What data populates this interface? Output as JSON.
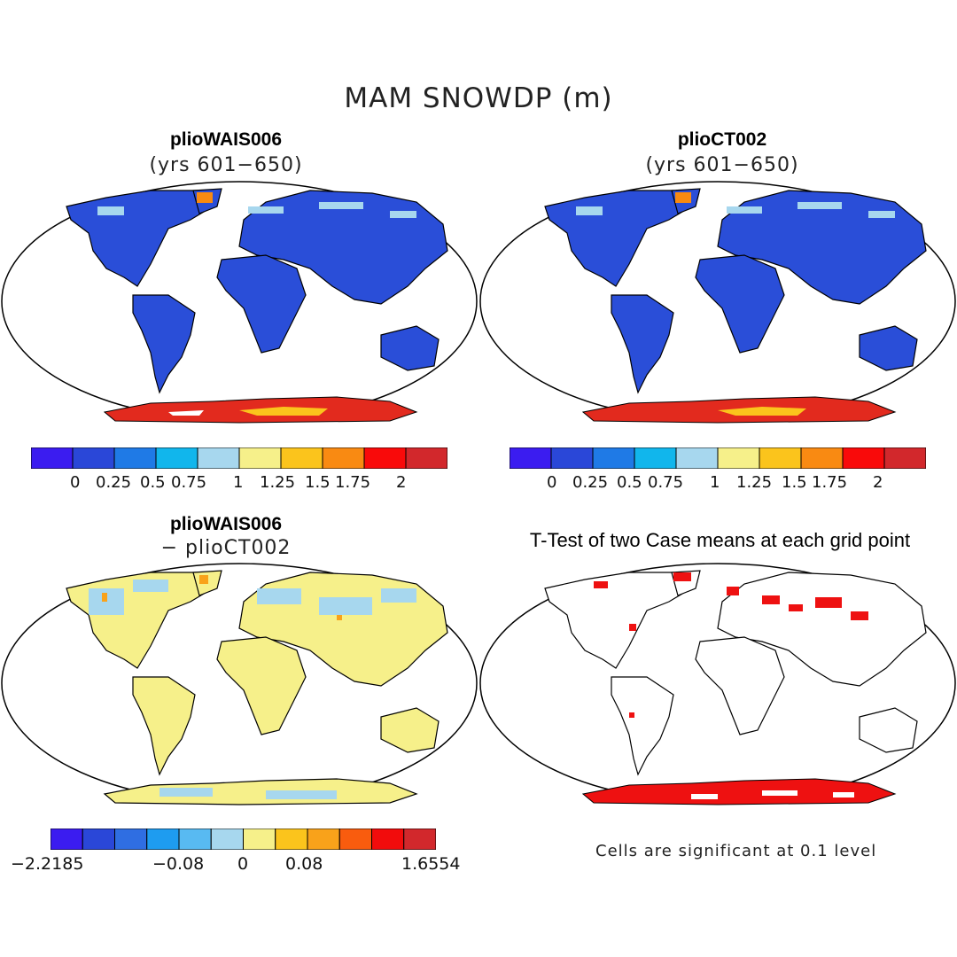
{
  "title": "MAM SNOWDP (m)",
  "panels": [
    {
      "title": "plioWAIS006",
      "subtitle": "(yrs 601−650)"
    },
    {
      "title": "plioCT002",
      "subtitle": "(yrs 601−650)"
    },
    {
      "title": "plioWAIS006",
      "subtitle": "− plioCT002"
    },
    {
      "title": "T-Test of two Case means at each grid point",
      "subtitle": ""
    }
  ],
  "colorbar_abs": {
    "colors": [
      "#3b1cf0",
      "#2a47d8",
      "#1f7ae6",
      "#11b6ec",
      "#a7d7ee",
      "#f6f08a",
      "#fbc41c",
      "#f98a12",
      "#f90a0a",
      "#d2282c"
    ],
    "labels": [
      "0",
      "0.25",
      "0.5",
      "0.75",
      "1",
      "1.25",
      "1.5",
      "1.75",
      "2"
    ]
  },
  "colorbar_diff": {
    "colors": [
      "#3b1cf0",
      "#2a47d8",
      "#2f6ee2",
      "#1e9cf0",
      "#58baf2",
      "#a7d7ee",
      "#f6f08a",
      "#fbc41c",
      "#f9a21a",
      "#f95c0e",
      "#f20c0c",
      "#d2282c"
    ],
    "labels": [
      "−2.2185",
      "−0.08",
      "0",
      "0.08",
      "1.6554"
    ]
  },
  "note": "Cells are significant at 0.1 level",
  "colors": {
    "land_snow": "#2a4ed8",
    "land_diff": "#f6f08a",
    "antarctica": "#e22a1e",
    "significant": "#ee1111"
  }
}
